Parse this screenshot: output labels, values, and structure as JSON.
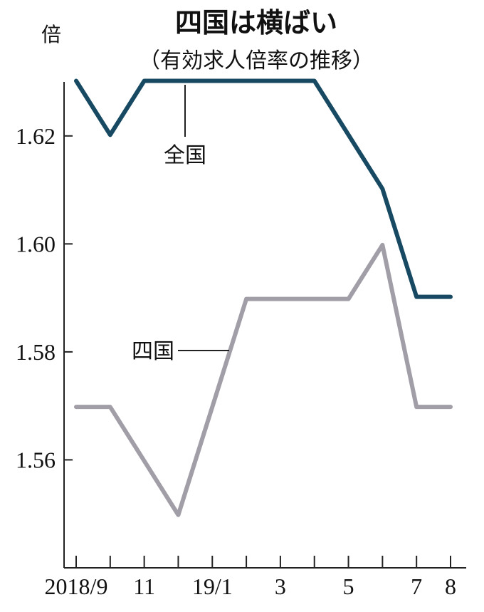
{
  "chart_data": {
    "type": "line",
    "title": "四国は横ばい",
    "subtitle": "（有効求人倍率の推移）",
    "ylabel": "倍",
    "xlabel": "",
    "ylim": [
      1.54,
      1.63
    ],
    "yticks": [
      "1.56",
      "1.58",
      "1.60",
      "1.62"
    ],
    "ytick_values": [
      1.56,
      1.58,
      1.6,
      1.62
    ],
    "x": [
      "2018/9",
      "10",
      "11",
      "12",
      "19/1",
      "2",
      "3",
      "4",
      "5",
      "6",
      "7",
      "8"
    ],
    "xtick_labels": [
      "2018/9",
      "",
      "11",
      "",
      "19/1",
      "",
      "3",
      "",
      "5",
      "",
      "7",
      "8"
    ],
    "grid": false,
    "series": [
      {
        "name": "全国",
        "color": "#174a62",
        "values": [
          1.63,
          1.62,
          1.63,
          1.63,
          1.63,
          1.63,
          1.63,
          1.63,
          1.62,
          1.61,
          1.59,
          1.59
        ]
      },
      {
        "name": "四国",
        "color": "#a19ea7",
        "values": [
          1.57,
          1.57,
          1.56,
          1.55,
          1.57,
          1.59,
          1.59,
          1.59,
          1.59,
          1.6,
          1.57,
          1.57
        ]
      }
    ]
  }
}
